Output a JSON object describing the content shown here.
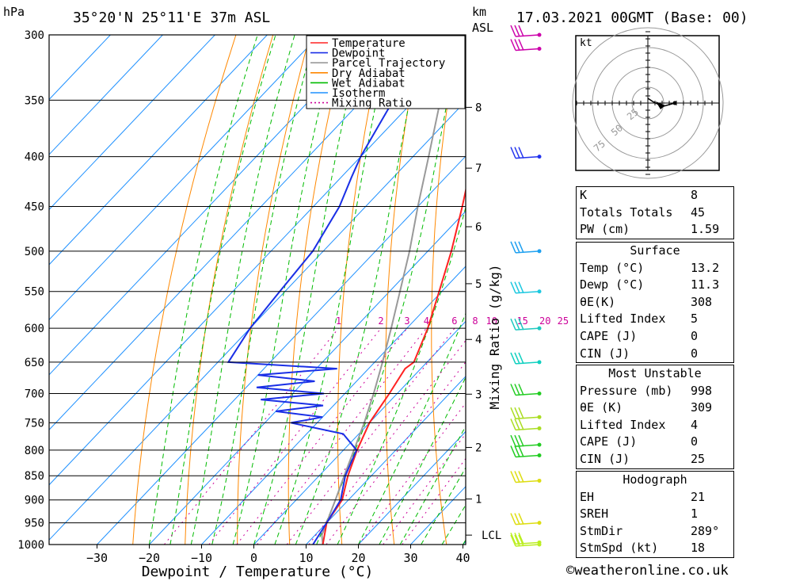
{
  "header": {
    "location": "35°20'N 25°11'E 37m ASL",
    "datetime": "17.03.2021 00GMT (Base: 00)",
    "hpa_label": "hPa",
    "km_label": "km",
    "asl_label": "ASL",
    "kt_label": "kt"
  },
  "chart_data": {
    "type": "line",
    "title": "35°20'N 25°11'E 37m ASL",
    "xlabel": "Dewpoint / Temperature (°C)",
    "ylabel": "hPa",
    "mixing_ratio_axis_label": "Mixing Ratio (g/kg)",
    "xlim": [
      -40,
      40
    ],
    "ylim": [
      1000,
      300
    ],
    "x_ticks": [
      -30,
      -20,
      -10,
      0,
      10,
      20,
      30,
      40
    ],
    "pressure_levels": [
      300,
      350,
      400,
      450,
      500,
      550,
      600,
      650,
      700,
      750,
      800,
      850,
      900,
      950,
      1000
    ],
    "km_ticks": [
      {
        "km": 1,
        "p": 898
      },
      {
        "km": 2,
        "p": 795
      },
      {
        "km": 3,
        "p": 701
      },
      {
        "km": 4,
        "p": 616
      },
      {
        "km": 5,
        "p": 540
      },
      {
        "km": 6,
        "p": 472
      },
      {
        "km": 7,
        "p": 411
      },
      {
        "km": 8,
        "p": 356
      }
    ],
    "lcl": {
      "label": "LCL",
      "p": 978
    },
    "mixing_ratio_labels": [
      "1",
      "2",
      "3",
      "4",
      "6",
      "8",
      "10",
      "15",
      "20",
      "25"
    ],
    "legend": [
      "Temperature",
      "Dewpoint",
      "Parcel Trajectory",
      "Dry Adiabat",
      "Wet Adiabat",
      "Isotherm",
      "Mixing Ratio"
    ],
    "legend_position": "top-center",
    "colors": {
      "temperature": "#ff2222",
      "dewpoint": "#1a2fe6",
      "parcel": "#999999",
      "dry_adiabat": "#ff8800",
      "wet_adiabat": "#00bb00",
      "isotherm": "#1e90ff",
      "mixing_ratio": "#cc0099"
    },
    "series": [
      {
        "name": "Temperature",
        "points": [
          [
            1000,
            13.2
          ],
          [
            950,
            10.0
          ],
          [
            900,
            8.8
          ],
          [
            850,
            5.5
          ],
          [
            800,
            2.6
          ],
          [
            750,
            0.0
          ],
          [
            700,
            -1.5
          ],
          [
            660,
            -3.0
          ],
          [
            650,
            -2.5
          ],
          [
            600,
            -6.0
          ],
          [
            550,
            -10.5
          ],
          [
            500,
            -15.5
          ],
          [
            450,
            -21.5
          ],
          [
            400,
            -28.5
          ],
          [
            350,
            -36.5
          ],
          [
            320,
            -41.0
          ],
          [
            300,
            -44.0
          ]
        ]
      },
      {
        "name": "Dewpoint",
        "points": [
          [
            1000,
            11.3
          ],
          [
            950,
            10.0
          ],
          [
            900,
            8.5
          ],
          [
            850,
            5.0
          ],
          [
            800,
            2.5
          ],
          [
            770,
            -3.0
          ],
          [
            750,
            -15.0
          ],
          [
            740,
            -10.0
          ],
          [
            730,
            -20.0
          ],
          [
            720,
            -12.0
          ],
          [
            710,
            -25.0
          ],
          [
            700,
            -14.0
          ],
          [
            690,
            -28.0
          ],
          [
            680,
            -18.0
          ],
          [
            670,
            -30.0
          ],
          [
            660,
            -16.0
          ],
          [
            650,
            -38.0
          ],
          [
            600,
            -40.0
          ],
          [
            550,
            -41.0
          ],
          [
            500,
            -42.0
          ],
          [
            450,
            -45.0
          ],
          [
            420,
            -48.0
          ],
          [
            400,
            -50.0
          ],
          [
            350,
            -54.0
          ],
          [
            320,
            -63.0
          ],
          [
            300,
            -65.0
          ]
        ]
      },
      {
        "name": "Parcel Trajectory",
        "points": [
          [
            1000,
            13.2
          ],
          [
            978,
            11.3
          ],
          [
            900,
            7.5
          ],
          [
            850,
            4.8
          ],
          [
            800,
            2.0
          ],
          [
            750,
            -1.0
          ],
          [
            700,
            -4.5
          ],
          [
            650,
            -8.5
          ],
          [
            600,
            -13.0
          ],
          [
            550,
            -18.0
          ],
          [
            500,
            -23.5
          ],
          [
            450,
            -30.0
          ],
          [
            400,
            -37.0
          ],
          [
            350,
            -45.0
          ],
          [
            300,
            -55.0
          ]
        ]
      }
    ],
    "wind_barbs_pressure": [
      300,
      310,
      400,
      500,
      550,
      600,
      650,
      700,
      740,
      760,
      790,
      810,
      860,
      950,
      995,
      1000
    ]
  },
  "indices": {
    "general": [
      {
        "label": "K",
        "value": "8"
      },
      {
        "label": "Totals Totals",
        "value": "45"
      },
      {
        "label": "PW (cm)",
        "value": "1.59"
      }
    ],
    "surface": {
      "title": "Surface",
      "rows": [
        {
          "label": "Temp (°C)",
          "value": "13.2"
        },
        {
          "label": "Dewp (°C)",
          "value": "11.3"
        },
        {
          "label": "θE(K)",
          "value": "308"
        },
        {
          "label": "Lifted Index",
          "value": "5"
        },
        {
          "label": "CAPE (J)",
          "value": "0"
        },
        {
          "label": "CIN (J)",
          "value": "0"
        }
      ]
    },
    "most_unstable": {
      "title": "Most Unstable",
      "rows": [
        {
          "label": "Pressure (mb)",
          "value": "998"
        },
        {
          "label": "θE (K)",
          "value": "309"
        },
        {
          "label": "Lifted Index",
          "value": "4"
        },
        {
          "label": "CAPE (J)",
          "value": "0"
        },
        {
          "label": "CIN (J)",
          "value": "25"
        }
      ]
    },
    "hodograph": {
      "title": "Hodograph",
      "rows": [
        {
          "label": "EH",
          "value": "21"
        },
        {
          "label": "SREH",
          "value": "1"
        },
        {
          "label": "StmDir",
          "value": "289°"
        },
        {
          "label": "StmSpd (kt)",
          "value": "18"
        }
      ]
    }
  },
  "hodograph_rings": [
    "25",
    "50",
    "75"
  ],
  "footer": "©weatheronline.co.uk"
}
